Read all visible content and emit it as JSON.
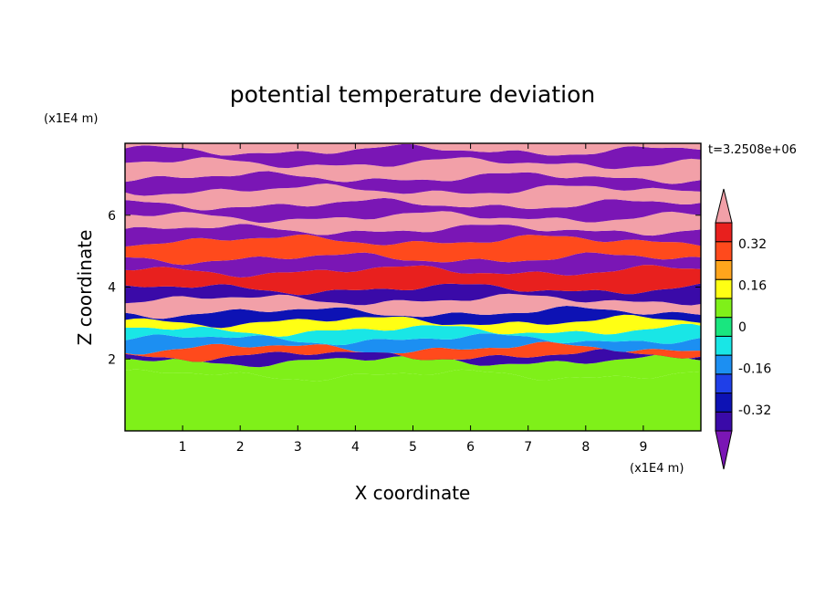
{
  "chart_data": {
    "type": "heatmap",
    "title": "potential temperature deviation",
    "xlabel": "X coordinate",
    "ylabel": "Z coordinate",
    "x_unit": "(x1E4 m)",
    "z_unit": "(x1E4 m)",
    "time_label": "t=3.2508e+06",
    "xlim": [
      0,
      10
    ],
    "ylim": [
      0,
      8
    ],
    "x_ticks": [
      1,
      2,
      3,
      4,
      5,
      6,
      7,
      8,
      9
    ],
    "y_ticks": [
      2,
      4,
      6
    ],
    "colorbar": {
      "levels": [
        -0.48,
        -0.4,
        -0.32,
        -0.24,
        -0.16,
        -0.08,
        0,
        0.08,
        0.16,
        0.24,
        0.32,
        0.4,
        0.48
      ],
      "colors": [
        "#7a16b5",
        "#3a0aa8",
        "#0d12b4",
        "#1f3fe8",
        "#1c8ff2",
        "#19e6e6",
        "#19e67f",
        "#7ff019",
        "#ffff14",
        "#ffa51c",
        "#ff4a1c",
        "#e8201e",
        "#f2a0a8"
      ],
      "labels": [
        "0.32",
        "0.16",
        "0",
        "-0.16",
        "-0.32"
      ],
      "label_values": [
        0.32,
        0.16,
        0,
        -0.16,
        -0.32
      ],
      "extend": "both"
    },
    "bands": [
      {
        "z": [
          0.0,
          1.55
        ],
        "value": 0.08
      },
      {
        "z": [
          1.55,
          1.95
        ],
        "value": 0.08
      },
      {
        "z": [
          1.95,
          2.1
        ],
        "value": -0.4
      },
      {
        "z": [
          2.1,
          2.3
        ],
        "value": 0.32
      },
      {
        "z": [
          2.3,
          2.55
        ],
        "value": -0.16
      },
      {
        "z": [
          2.55,
          2.8
        ],
        "value": -0.08
      },
      {
        "z": [
          2.8,
          3.05
        ],
        "value": 0.16
      },
      {
        "z": [
          3.05,
          3.3
        ],
        "value": -0.32
      },
      {
        "z": [
          3.3,
          3.65
        ],
        "value": 0.48
      },
      {
        "z": [
          3.65,
          3.95
        ],
        "value": -0.4
      },
      {
        "z": [
          3.95,
          4.45
        ],
        "value": 0.4
      },
      {
        "z": [
          4.45,
          4.8
        ],
        "value": -0.48
      },
      {
        "z": [
          4.8,
          5.3
        ],
        "value": 0.32
      },
      {
        "z": [
          5.3,
          5.6
        ],
        "value": -0.48
      },
      {
        "z": [
          5.6,
          5.95
        ],
        "value": 0.48
      },
      {
        "z": [
          5.95,
          6.3
        ],
        "value": -0.48
      },
      {
        "z": [
          6.3,
          6.7
        ],
        "value": 0.48
      },
      {
        "z": [
          6.7,
          7.05
        ],
        "value": -0.48
      },
      {
        "z": [
          7.05,
          7.45
        ],
        "value": 0.48
      },
      {
        "z": [
          7.45,
          7.8
        ],
        "value": -0.48
      },
      {
        "z": [
          7.8,
          8.0
        ],
        "value": 0.48
      }
    ]
  }
}
